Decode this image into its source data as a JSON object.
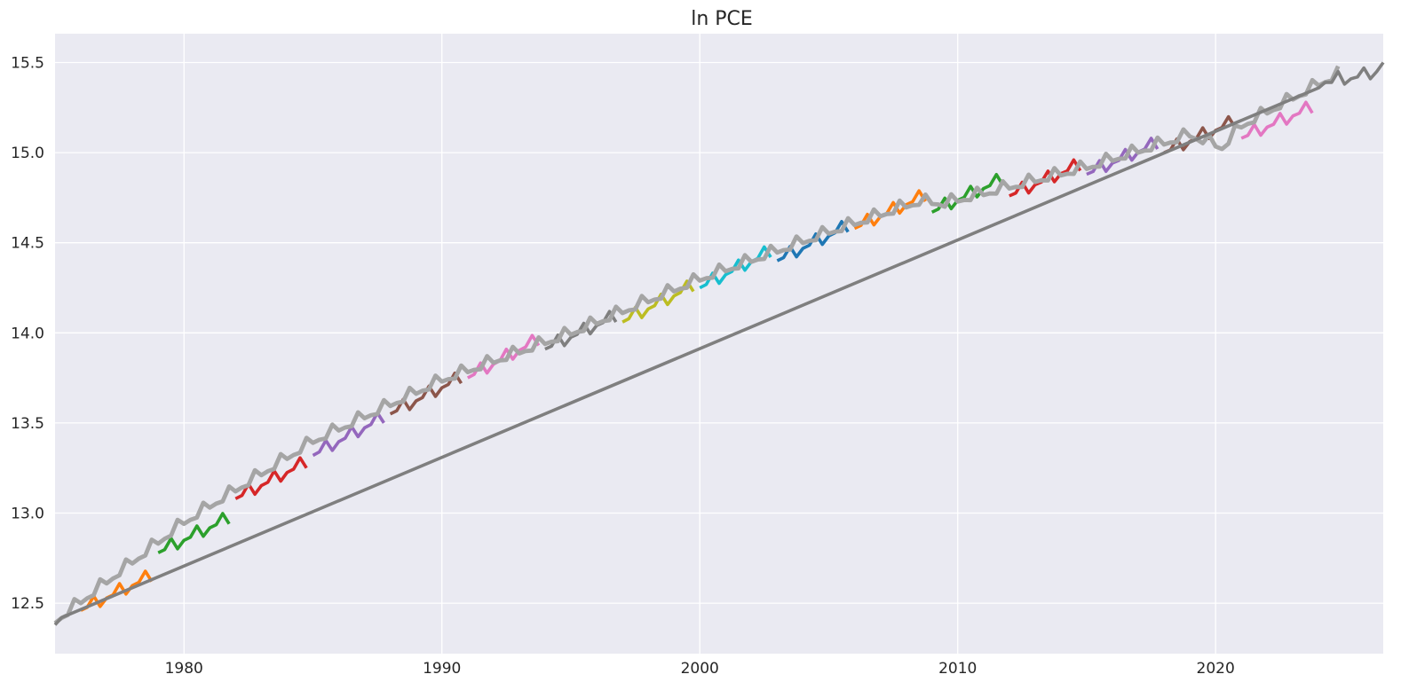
{
  "chart_data": {
    "type": "line",
    "title": "ln PCE",
    "xlabel": "",
    "ylabel": "",
    "xlim": [
      1975.0,
      2026.5
    ],
    "ylim": [
      12.22,
      15.66
    ],
    "xticks": [
      1980,
      1990,
      2000,
      2010,
      2020
    ],
    "xtick_labels": [
      "1980",
      "1990",
      "2000",
      "2010",
      "2020"
    ],
    "yticks": [
      12.5,
      13.0,
      13.5,
      14.0,
      14.5,
      15.0,
      15.5
    ],
    "ytick_labels": [
      "12.5",
      "13.0",
      "13.5",
      "14.0",
      "14.5",
      "15.0",
      "15.5"
    ],
    "grid": true,
    "background": "#eaeaf2",
    "grid_color": "#ffffff",
    "actual_series": {
      "color": "#a5a5a5",
      "start_year": 1975.0,
      "x_step": 0.25,
      "start_value": 12.38,
      "seasonal_pattern": [
        -0.01,
        -0.01,
        -0.02,
        0.04
      ],
      "trend_points": [
        [
          1975.0,
          12.4
        ],
        [
          1980.0,
          12.95
        ],
        [
          1985.0,
          13.4
        ],
        [
          1990.0,
          13.74
        ],
        [
          1995.0,
          14.0
        ],
        [
          2000.0,
          14.3
        ],
        [
          2005.0,
          14.56
        ],
        [
          2008.5,
          14.73
        ],
        [
          2009.5,
          14.72
        ],
        [
          2015.0,
          14.92
        ],
        [
          2019.0,
          15.1
        ],
        [
          2020.25,
          15.03
        ],
        [
          2021.0,
          15.15
        ],
        [
          2024.75,
          15.44
        ]
      ]
    },
    "actual_extension": {
      "color": "#7f7f7f",
      "points": [
        [
          1975.0,
          12.38
        ],
        [
          1975.25,
          12.42
        ],
        [
          2024.0,
          15.36
        ],
        [
          2024.25,
          15.39
        ],
        [
          2024.5,
          15.39
        ],
        [
          2024.75,
          15.45
        ],
        [
          2025.0,
          15.38
        ],
        [
          2025.25,
          15.41
        ],
        [
          2025.5,
          15.42
        ],
        [
          2025.75,
          15.47
        ],
        [
          2026.0,
          15.41
        ],
        [
          2026.25,
          15.45
        ],
        [
          2026.5,
          15.5
        ]
      ]
    },
    "forecast_series": [
      {
        "color": "#ff7f0e",
        "start": 1976.0,
        "end": 1978.75,
        "start_value": 12.46,
        "end_value": 12.65
      },
      {
        "color": "#2ca02c",
        "start": 1979.0,
        "end": 1981.75,
        "start_value": 12.78,
        "end_value": 12.97
      },
      {
        "color": "#d62728",
        "start": 1982.0,
        "end": 1984.75,
        "start_value": 13.08,
        "end_value": 13.28
      },
      {
        "color": "#9467bd",
        "start": 1985.0,
        "end": 1987.75,
        "start_value": 13.32,
        "end_value": 13.53
      },
      {
        "color": "#8c564b",
        "start": 1988.0,
        "end": 1990.75,
        "start_value": 13.55,
        "end_value": 13.75
      },
      {
        "color": "#e377c2",
        "start": 1991.0,
        "end": 1993.75,
        "start_value": 13.75,
        "end_value": 13.96
      },
      {
        "color": "#7f7f7f",
        "start": 1994.0,
        "end": 1996.75,
        "start_value": 13.91,
        "end_value": 14.09
      },
      {
        "color": "#bcbd22",
        "start": 1997.0,
        "end": 1999.75,
        "start_value": 14.06,
        "end_value": 14.26
      },
      {
        "color": "#17becf",
        "start": 2000.0,
        "end": 2002.75,
        "start_value": 14.25,
        "end_value": 14.45
      },
      {
        "color": "#1f77b4",
        "start": 2003.0,
        "end": 2005.75,
        "start_value": 14.4,
        "end_value": 14.59
      },
      {
        "color": "#ff7f0e",
        "start": 2006.0,
        "end": 2008.75,
        "start_value": 14.58,
        "end_value": 14.76
      },
      {
        "color": "#2ca02c",
        "start": 2009.0,
        "end": 2011.75,
        "start_value": 14.67,
        "end_value": 14.85
      },
      {
        "color": "#d62728",
        "start": 2012.0,
        "end": 2014.75,
        "start_value": 14.76,
        "end_value": 14.93
      },
      {
        "color": "#9467bd",
        "start": 2015.0,
        "end": 2017.75,
        "start_value": 14.88,
        "end_value": 15.05
      },
      {
        "color": "#8c564b",
        "start": 2018.0,
        "end": 2020.75,
        "start_value": 15.0,
        "end_value": 15.17
      },
      {
        "color": "#e377c2",
        "start": 2021.0,
        "end": 2023.75,
        "start_value": 15.08,
        "end_value": 15.25
      }
    ]
  }
}
